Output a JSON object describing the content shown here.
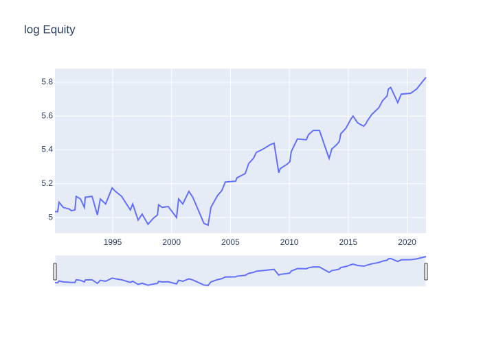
{
  "chart_data": {
    "type": "line",
    "title": "log Equity",
    "x": [
      1990.1,
      1990.33,
      1990.45,
      1990.8,
      1991.33,
      1991.5,
      1991.8,
      1991.9,
      1992.26,
      1992.6,
      1992.67,
      1993.25,
      1993.7,
      1993.95,
      1994.4,
      1994.95,
      1995.23,
      1995.76,
      1996.5,
      1996.7,
      1997.16,
      1997.5,
      1998.0,
      1998.44,
      1998.8,
      1998.9,
      1999.2,
      1999.72,
      2000.42,
      2000.6,
      2000.95,
      2001.47,
      2001.8,
      2002.75,
      2003.1,
      2003.34,
      2003.9,
      2004.27,
      2004.56,
      2005.44,
      2005.55,
      2006.25,
      2006.55,
      2006.95,
      2007.19,
      2007.77,
      2008.35,
      2008.7,
      2009.1,
      2009.23,
      2009.8,
      2010.04,
      2010.16,
      2010.68,
      2011.44,
      2011.62,
      2012.03,
      2012.55,
      2013.37,
      2013.6,
      2014.0,
      2014.24,
      2014.36,
      2014.82,
      2015.2,
      2015.4,
      2015.8,
      2016.3,
      2016.5,
      2016.6,
      2017.0,
      2017.6,
      2017.9,
      2018.3,
      2018.4,
      2018.6,
      2019.2,
      2019.5,
      2020.3,
      2020.8,
      2021.6
    ],
    "values": [
      5.035,
      5.035,
      5.09,
      5.06,
      5.05,
      5.04,
      5.045,
      5.125,
      5.11,
      5.06,
      5.12,
      5.125,
      5.015,
      5.11,
      5.08,
      5.175,
      5.155,
      5.125,
      5.045,
      5.08,
      4.985,
      5.02,
      4.96,
      4.995,
      5.015,
      5.075,
      5.06,
      5.065,
      5.0,
      5.11,
      5.08,
      5.155,
      5.12,
      4.965,
      4.955,
      5.06,
      5.13,
      5.16,
      5.21,
      5.215,
      5.235,
      5.26,
      5.32,
      5.35,
      5.385,
      5.405,
      5.43,
      5.44,
      5.265,
      5.29,
      5.315,
      5.33,
      5.39,
      5.465,
      5.46,
      5.49,
      5.515,
      5.515,
      5.35,
      5.405,
      5.43,
      5.45,
      5.495,
      5.53,
      5.58,
      5.6,
      5.56,
      5.54,
      5.555,
      5.57,
      5.61,
      5.65,
      5.69,
      5.72,
      5.76,
      5.77,
      5.68,
      5.73,
      5.735,
      5.76,
      5.83
    ],
    "color": "#636efa",
    "xlim": [
      1990.1,
      2021.6
    ],
    "xticks": [
      1995,
      2000,
      2005,
      2010,
      2015,
      2020
    ],
    "ylim": [
      4.907,
      5.881
    ],
    "yticks": [
      5,
      5.2,
      5.4,
      5.6,
      5.8
    ],
    "grid": true,
    "rangeslider": true
  }
}
